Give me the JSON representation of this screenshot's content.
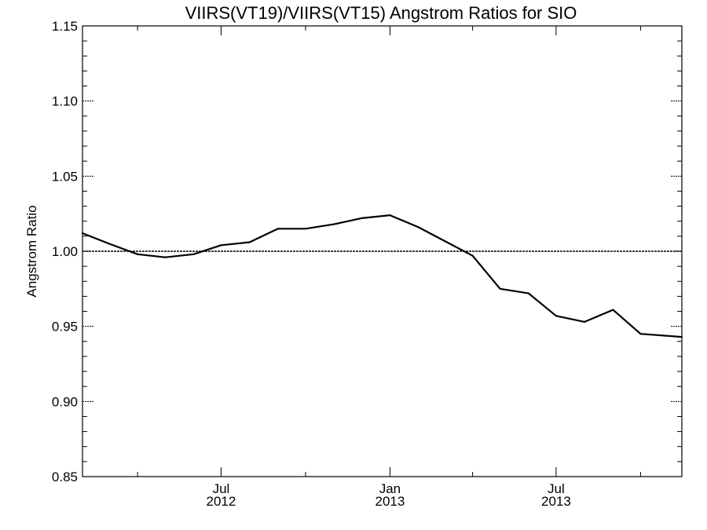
{
  "chart_data": {
    "type": "line",
    "title": "VIIRS(VT19)/VIIRS(VT15)  Angstrom Ratios for SIO",
    "xlabel": "",
    "ylabel": "Angstrom Ratio",
    "ylim": [
      0.85,
      1.15
    ],
    "xlim": [
      "2012-02-01",
      "2013-11-15"
    ],
    "grid": false,
    "reference_line": {
      "y": 1.0,
      "style": "dotted"
    },
    "yticks": [
      {
        "value": 0.85,
        "label": "0.85"
      },
      {
        "value": 0.9,
        "label": "0.90"
      },
      {
        "value": 0.95,
        "label": "0.95"
      },
      {
        "value": 1.0,
        "label": "1.00"
      },
      {
        "value": 1.05,
        "label": "1.05"
      },
      {
        "value": 1.1,
        "label": "1.10"
      },
      {
        "value": 1.15,
        "label": "1.15"
      }
    ],
    "xticks": [
      {
        "date": "2012-07-01",
        "month": "Jul",
        "year": "2012"
      },
      {
        "date": "2013-01-01",
        "month": "Jan",
        "year": "2013"
      },
      {
        "date": "2013-07-01",
        "month": "Jul",
        "year": "2013"
      }
    ],
    "x_minor_ticks": [
      "2012-04-01",
      "2012-10-01",
      "2013-04-01",
      "2013-10-01"
    ],
    "series": [
      {
        "x": [
          "2012-02-01",
          "2012-03-01",
          "2012-04-01",
          "2012-05-01",
          "2012-06-01",
          "2012-07-01",
          "2012-08-01",
          "2012-09-01",
          "2012-10-01",
          "2012-11-01",
          "2012-12-01",
          "2013-01-01",
          "2013-02-01",
          "2013-03-01",
          "2013-04-01",
          "2013-05-01",
          "2013-06-01",
          "2013-07-01",
          "2013-08-01",
          "2013-09-01",
          "2013-10-01",
          "2013-11-15"
        ],
        "values": [
          1.012,
          1.005,
          0.998,
          0.996,
          0.998,
          1.004,
          1.006,
          1.015,
          1.015,
          1.018,
          1.022,
          1.024,
          1.016,
          1.007,
          0.997,
          0.975,
          0.972,
          0.957,
          0.953,
          0.961,
          0.945,
          0.943
        ]
      }
    ]
  }
}
